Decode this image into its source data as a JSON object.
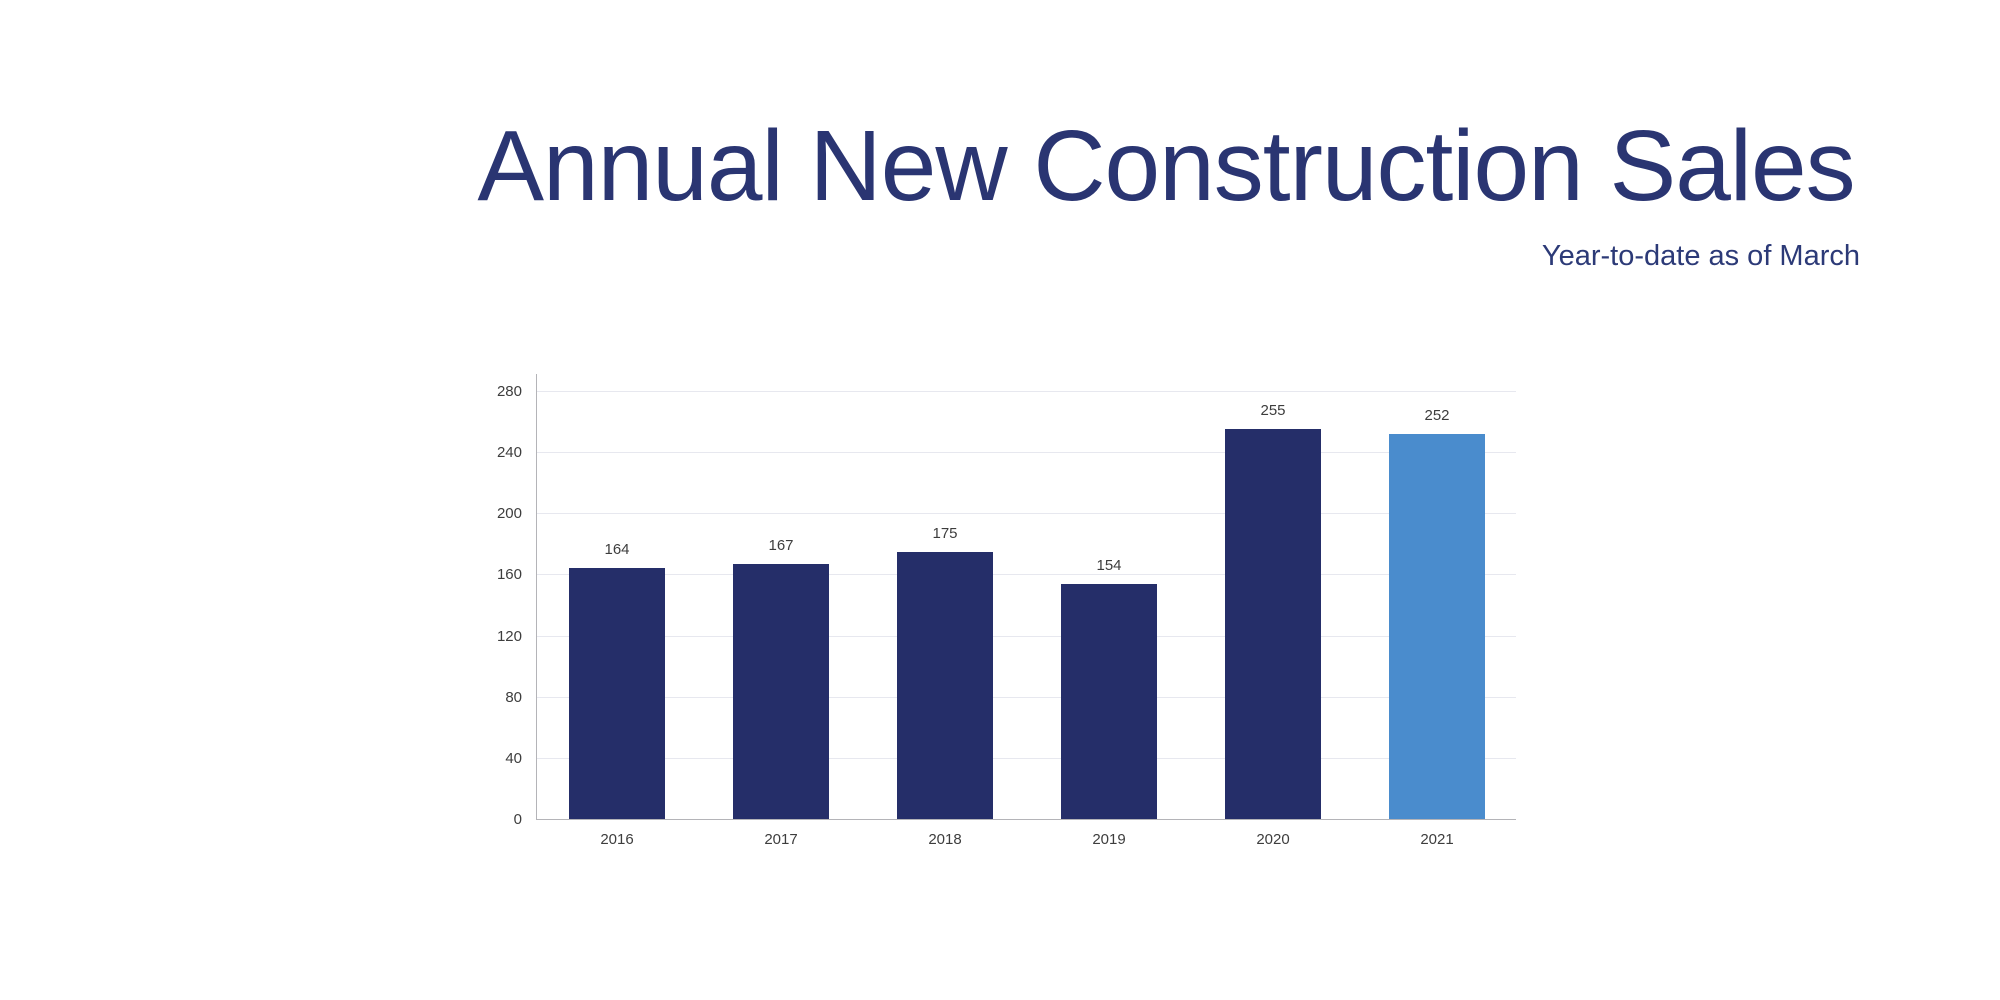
{
  "chart_data": {
    "type": "bar",
    "title": "Annual New Construction Sales",
    "subtitle": "Year-to-date as of March",
    "categories": [
      "2016",
      "2017",
      "2018",
      "2019",
      "2020",
      "2021"
    ],
    "values": [
      164,
      167,
      175,
      154,
      255,
      252
    ],
    "bar_colors": [
      "#252e69",
      "#252e69",
      "#252e69",
      "#252e69",
      "#252e69",
      "#4a8ccd"
    ],
    "yticks": [
      0,
      40,
      80,
      120,
      160,
      200,
      240,
      280
    ],
    "ylim": [
      0,
      280
    ],
    "grid": true,
    "legend_position": "none",
    "colors": {
      "bar_default": "#252e69",
      "bar_highlight": "#4a8ccd",
      "title_text": "#2a3572",
      "subtitle_text": "#2c3a77",
      "axis_text": "#3d3d3d",
      "gridline": "#e7e8ef",
      "axis_line": "#b4b4b8"
    }
  }
}
